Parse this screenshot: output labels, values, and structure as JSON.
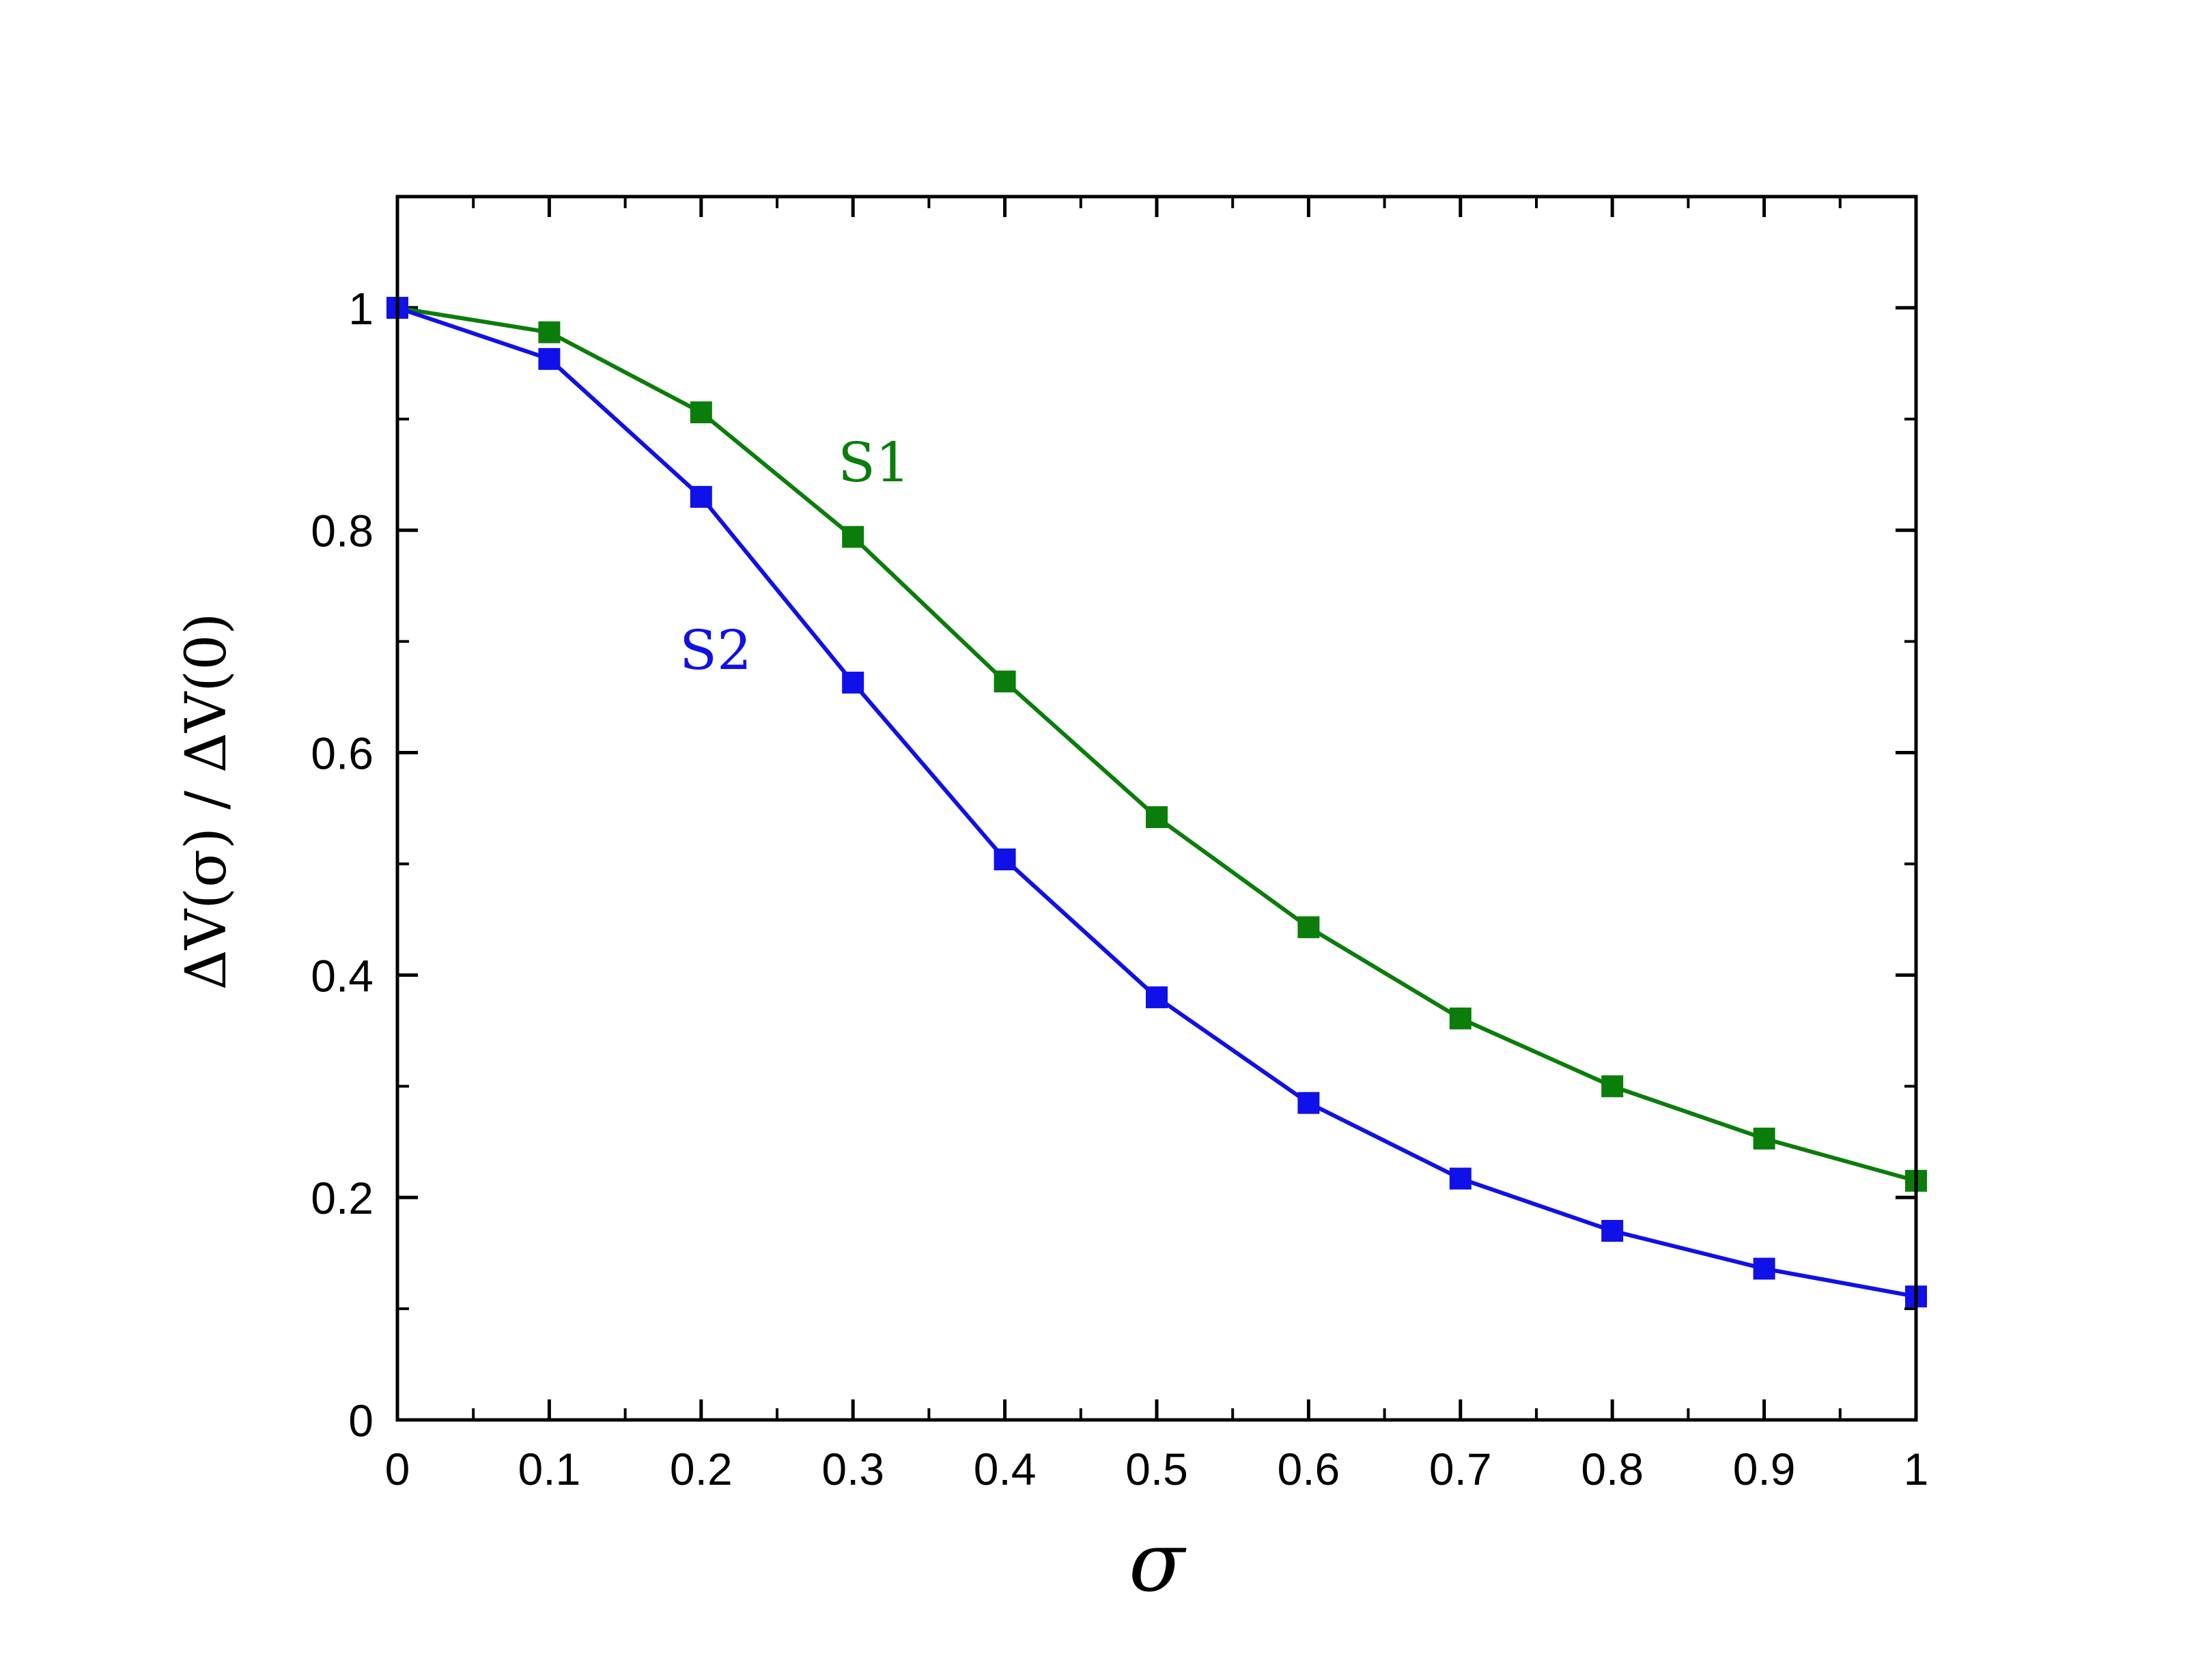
{
  "chart_data": {
    "type": "line",
    "title": "",
    "xlabel": "σ",
    "ylabel": "ΔV(σ) / ΔV(0)",
    "xlim": [
      0,
      1
    ],
    "ylim": [
      0,
      1.1
    ],
    "grid": false,
    "x": [
      0,
      0.1,
      0.2,
      0.3,
      0.4,
      0.5,
      0.6,
      0.7,
      0.8,
      0.9,
      1.0
    ],
    "x_tick_labels": [
      "0",
      "0.1",
      "0.2",
      "0.3",
      "0.4",
      "0.5",
      "0.6",
      "0.7",
      "0.8",
      "0.9",
      "1"
    ],
    "y_ticks": [
      0,
      0.2,
      0.4,
      0.6,
      0.8,
      1.0
    ],
    "y_tick_labels": [
      "0",
      "0.2",
      "0.4",
      "0.6",
      "0.8",
      "1"
    ],
    "series": [
      {
        "name": "S1",
        "color": "#0a7d0a",
        "marker": "square",
        "values": [
          1.0,
          0.978,
          0.906,
          0.794,
          0.664,
          0.542,
          0.443,
          0.361,
          0.3,
          0.253,
          0.215
        ]
      },
      {
        "name": "S2",
        "color": "#1010e8",
        "marker": "square",
        "values": [
          1.0,
          0.954,
          0.83,
          0.663,
          0.504,
          0.38,
          0.285,
          0.217,
          0.17,
          0.136,
          0.111
        ]
      }
    ]
  }
}
